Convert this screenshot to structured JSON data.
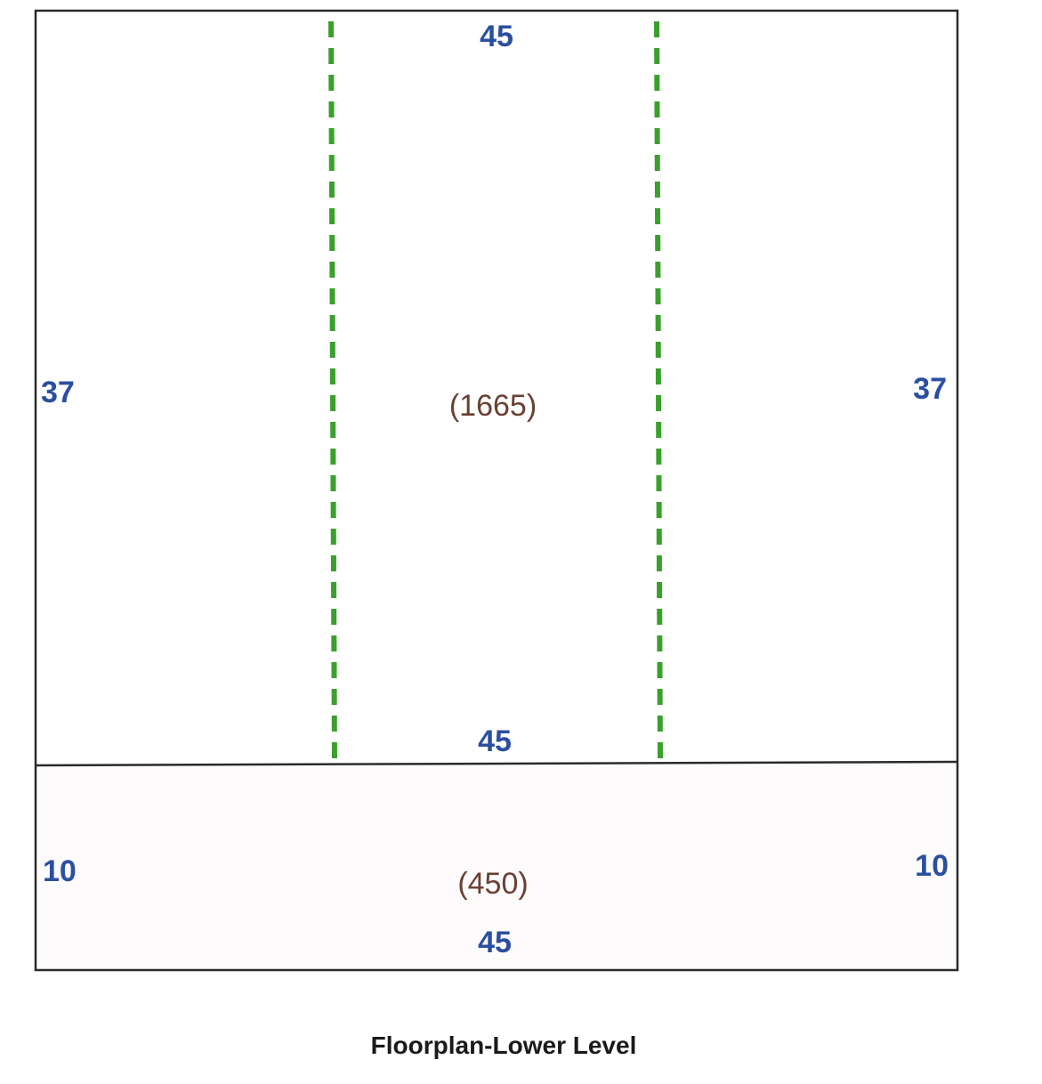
{
  "title": "Floorplan-Lower Level",
  "colors": {
    "outline": "#2a2a2a",
    "dimension_text": "#2b4fa0",
    "area_text": "#6a4034",
    "dashed_line": "#3aa02c",
    "lower_fill": "#fdfbfc"
  },
  "upper_section": {
    "top_dimension": "45",
    "left_dimension": "37",
    "right_dimension": "37",
    "bottom_dimension": "45",
    "area": "(1665)"
  },
  "lower_section": {
    "left_dimension": "10",
    "right_dimension": "10",
    "bottom_dimension": "45",
    "area": "(450)"
  }
}
